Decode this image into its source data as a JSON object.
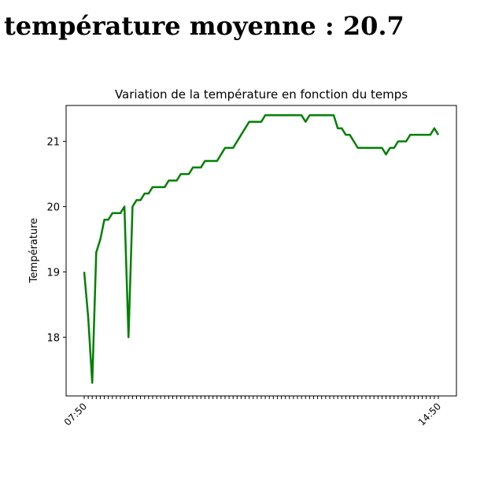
{
  "heading": "température moyenne : 20.7",
  "chart_data": {
    "type": "line",
    "title": "Variation de la température en fonction du temps",
    "xlabel": "",
    "ylabel": "Température",
    "ylim": [
      17.1,
      21.55
    ],
    "yticks": [
      18,
      19,
      20,
      21
    ],
    "x_first_tick_label": "07:50",
    "x_last_tick_label": "14:50",
    "grid": false,
    "line_color": "#008000",
    "series": [
      {
        "values": [
          19.0,
          18.3,
          17.3,
          19.3,
          19.5,
          19.8,
          19.8,
          19.9,
          19.9,
          19.9,
          20.0,
          18.0,
          20.0,
          20.1,
          20.1,
          20.2,
          20.2,
          20.3,
          20.3,
          20.3,
          20.3,
          20.4,
          20.4,
          20.4,
          20.5,
          20.5,
          20.5,
          20.6,
          20.6,
          20.6,
          20.7,
          20.7,
          20.7,
          20.7,
          20.8,
          20.9,
          20.9,
          20.9,
          21.0,
          21.1,
          21.2,
          21.3,
          21.3,
          21.3,
          21.3,
          21.4,
          21.4,
          21.4,
          21.4,
          21.4,
          21.4,
          21.4,
          21.4,
          21.4,
          21.4,
          21.3,
          21.4,
          21.4,
          21.4,
          21.4,
          21.4,
          21.4,
          21.4,
          21.2,
          21.2,
          21.1,
          21.1,
          21.0,
          20.9,
          20.9,
          20.9,
          20.9,
          20.9,
          20.9,
          20.9,
          20.8,
          20.9,
          20.9,
          21.0,
          21.0,
          21.0,
          21.1,
          21.1,
          21.1,
          21.1,
          21.1,
          21.1,
          21.2,
          21.1
        ]
      }
    ]
  }
}
